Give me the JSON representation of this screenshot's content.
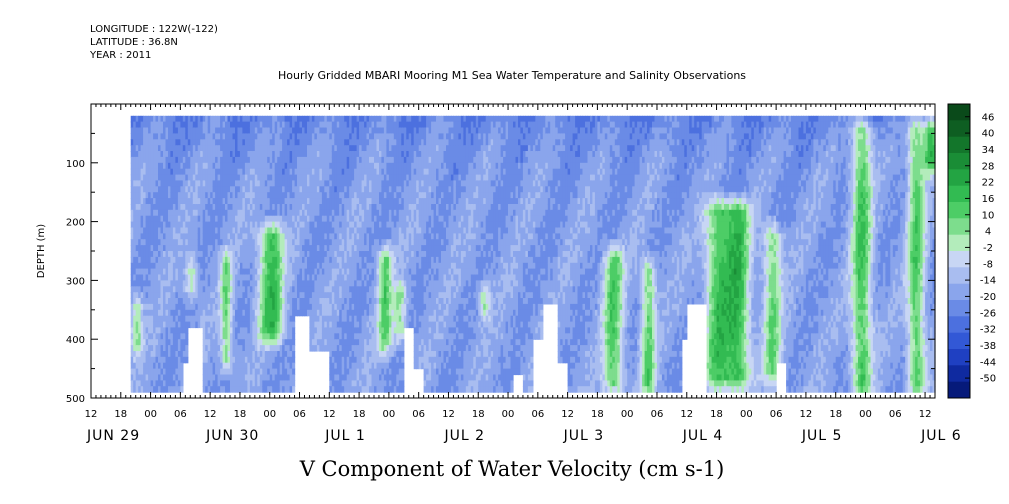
{
  "header": {
    "longitude": "LONGITUDE : 122W(-122)",
    "latitude": "LATITUDE : 36.8N",
    "year": "YEAR : 2011"
  },
  "chart_data": {
    "type": "heatmap",
    "title": "Hourly Gridded MBARI Mooring M1 Sea Water Temperature and Salinity Observations",
    "xlabel": "V Component of Water Velocity (cm s-1)",
    "ylabel": "DEPTH (m)",
    "x_unit": "hours since JUN 29 12:00 (2011)",
    "xlim": [
      0,
      170
    ],
    "ylim": [
      500,
      0
    ],
    "y_ticks": [
      100,
      200,
      300,
      400,
      500
    ],
    "x_tick_labels": [
      "12",
      "18",
      "00",
      "06",
      "12",
      "18",
      "00",
      "06",
      "12",
      "18",
      "00",
      "06",
      "12",
      "18",
      "00",
      "06",
      "12",
      "18",
      "00",
      "06",
      "12",
      "18",
      "00",
      "06",
      "12",
      "18",
      "00",
      "06",
      "12"
    ],
    "date_labels": [
      {
        "label": "JUN 29",
        "hour": 0
      },
      {
        "label": "JUN 30",
        "hour": 24
      },
      {
        "label": "JUL  1",
        "hour": 48
      },
      {
        "label": "JUL  2",
        "hour": 72
      },
      {
        "label": "JUL  3",
        "hour": 96
      },
      {
        "label": "JUL  4",
        "hour": 120
      },
      {
        "label": "JUL  5",
        "hour": 144
      },
      {
        "label": "JUL  6",
        "hour": 168
      }
    ],
    "colorbar": {
      "labels": [
        "46",
        "40",
        "34",
        "28",
        "22",
        "16",
        "10",
        "4",
        "-2",
        "-8",
        "-14",
        "-20",
        "-26",
        "-32",
        "-38",
        "-44",
        "-50"
      ],
      "colors": [
        "#0a4a1a",
        "#0e5e22",
        "#13762b",
        "#1a8d36",
        "#23a443",
        "#32bb52",
        "#4dcd66",
        "#7ddd8d",
        "#b3ecbb",
        "#c8d6f4",
        "#a9bdf0",
        "#8aa5ec",
        "#6a8be6",
        "#4c70df",
        "#3258d6",
        "#1f40c2",
        "#0f2aa0",
        "#061a7a"
      ]
    },
    "data_depth_range": [
      20,
      490
    ],
    "data_start_hour": 8,
    "background_field": "southward (negative) flow ~ -10 to -20 cm/s, strongest near surface",
    "northward_bands": [
      {
        "hour": 36,
        "width": 2.5,
        "depth": [
          200,
          400
        ],
        "v": 18
      },
      {
        "hour": 27,
        "width": 1.2,
        "depth": [
          250,
          450
        ],
        "v": 8
      },
      {
        "hour": 59,
        "width": 1.5,
        "depth": [
          240,
          420
        ],
        "v": 10
      },
      {
        "hour": 62,
        "width": 1.2,
        "depth": [
          300,
          400
        ],
        "v": 6
      },
      {
        "hour": 105,
        "width": 2.0,
        "depth": [
          240,
          490
        ],
        "v": 12
      },
      {
        "hour": 112,
        "width": 1.5,
        "depth": [
          260,
          490
        ],
        "v": 10
      },
      {
        "hour": 126,
        "width": 2.5,
        "depth": [
          160,
          480
        ],
        "v": 14
      },
      {
        "hour": 130,
        "width": 2.5,
        "depth": [
          160,
          480
        ],
        "v": 18
      },
      {
        "hour": 137,
        "width": 1.8,
        "depth": [
          200,
          470
        ],
        "v": 9
      },
      {
        "hour": 155,
        "width": 2.0,
        "depth": [
          20,
          490
        ],
        "v": 15
      },
      {
        "hour": 166,
        "width": 1.8,
        "depth": [
          20,
          490
        ],
        "v": 13
      },
      {
        "hour": 169,
        "width": 1.5,
        "depth": [
          20,
          110
        ],
        "v": 20
      },
      {
        "hour": 9,
        "width": 1.2,
        "depth": [
          320,
          420
        ],
        "v": 5
      },
      {
        "hour": 20,
        "width": 1.2,
        "depth": [
          260,
          330
        ],
        "v": 5
      },
      {
        "hour": 79,
        "width": 1.2,
        "depth": [
          300,
          360
        ],
        "v": 4
      }
    ],
    "missing_data": [
      {
        "hours": [
          19.5,
          22.5
        ],
        "depth": [
          380,
          490
        ]
      },
      {
        "hours": [
          18.5,
          20
        ],
        "depth": [
          440,
          490
        ]
      },
      {
        "hours": [
          41,
          44
        ],
        "depth": [
          360,
          490
        ]
      },
      {
        "hours": [
          44,
          48
        ],
        "depth": [
          420,
          490
        ]
      },
      {
        "hours": [
          63,
          65
        ],
        "depth": [
          380,
          490
        ]
      },
      {
        "hours": [
          65,
          67
        ],
        "depth": [
          450,
          490
        ]
      },
      {
        "hours": [
          85,
          87
        ],
        "depth": [
          460,
          490
        ]
      },
      {
        "hours": [
          89,
          91
        ],
        "depth": [
          400,
          490
        ]
      },
      {
        "hours": [
          91,
          94
        ],
        "depth": [
          340,
          490
        ]
      },
      {
        "hours": [
          94,
          96
        ],
        "depth": [
          440,
          490
        ]
      },
      {
        "hours": [
          120,
          124
        ],
        "depth": [
          340,
          490
        ]
      },
      {
        "hours": [
          119,
          121
        ],
        "depth": [
          400,
          490
        ]
      },
      {
        "hours": [
          138,
          140
        ],
        "depth": [
          440,
          490
        ]
      }
    ]
  }
}
